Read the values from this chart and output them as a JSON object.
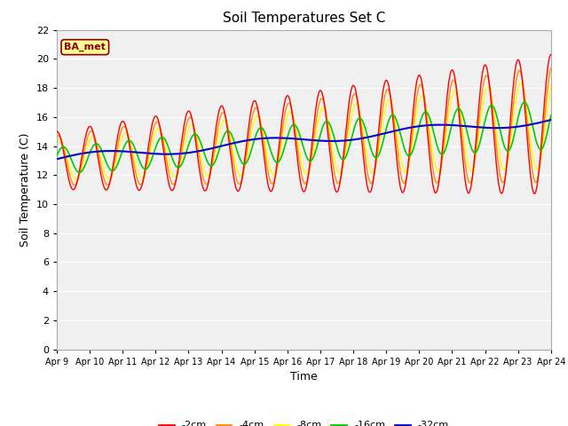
{
  "title": "Soil Temperatures Set C",
  "xlabel": "Time",
  "ylabel": "Soil Temperature (C)",
  "ylim": [
    0,
    22
  ],
  "yticks": [
    0,
    2,
    4,
    6,
    8,
    10,
    12,
    14,
    16,
    18,
    20,
    22
  ],
  "plot_bg_color": "#f0f0f0",
  "grid_color": "#ffffff",
  "series": {
    "-2cm": {
      "color": "#ff0000",
      "linewidth": 1.0
    },
    "-4cm": {
      "color": "#ff8c00",
      "linewidth": 1.0
    },
    "-8cm": {
      "color": "#ffff00",
      "linewidth": 1.0
    },
    "-16cm": {
      "color": "#00cc00",
      "linewidth": 1.2
    },
    "-32cm": {
      "color": "#0000cc",
      "linewidth": 1.5
    }
  },
  "xtick_labels": [
    "Apr 9",
    "Apr 10",
    "Apr 11",
    "Apr 12",
    "Apr 13",
    "Apr 14",
    "Apr 15",
    "Apr 16",
    "Apr 17",
    "Apr 18",
    "Apr 19",
    "Apr 20",
    "Apr 21",
    "Apr 22",
    "Apr 23",
    "Apr 24"
  ],
  "annotation_text": "BA_met",
  "annotation_color": "#8b0000",
  "annotation_bg": "#ffff99",
  "annotation_border": "#8b0000",
  "fig_bg": "#ffffff"
}
